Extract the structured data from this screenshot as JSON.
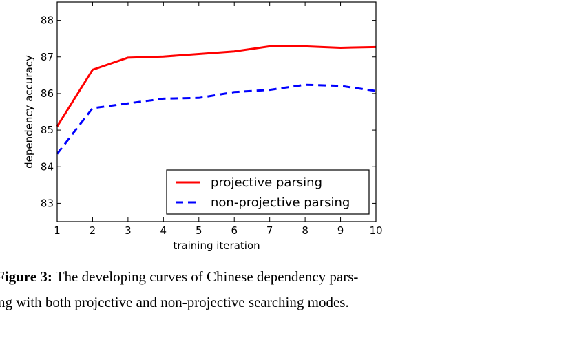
{
  "chart_data": {
    "type": "line",
    "title": "",
    "xlabel": "training iteration",
    "ylabel": "dependency accuracy",
    "x": [
      1,
      2,
      3,
      4,
      5,
      6,
      7,
      8,
      9,
      10
    ],
    "xlim": [
      1,
      10
    ],
    "ylim": [
      82.5,
      88.5
    ],
    "xticks": [
      "1",
      "2",
      "3",
      "4",
      "5",
      "6",
      "7",
      "8",
      "9",
      "10"
    ],
    "yticks": [
      "83",
      "84",
      "85",
      "86",
      "87",
      "88"
    ],
    "grid": false,
    "legend_position": "bottom-right",
    "series": [
      {
        "name": "projective parsing",
        "color": "#ff0000",
        "style": "solid",
        "values": [
          85.1,
          86.65,
          86.98,
          87.01,
          87.08,
          87.15,
          87.29,
          87.29,
          87.25,
          87.27
        ]
      },
      {
        "name": "non-projective parsing",
        "color": "#0000ff",
        "style": "dashed",
        "values": [
          84.35,
          85.6,
          85.73,
          85.86,
          85.88,
          86.04,
          86.1,
          86.24,
          86.21,
          86.07
        ]
      }
    ]
  },
  "caption": {
    "label": "Figure 3:",
    "line1": "The developing curves of Chinese dependency pars-",
    "line2": "ng with both projective and non-projective searching modes."
  }
}
